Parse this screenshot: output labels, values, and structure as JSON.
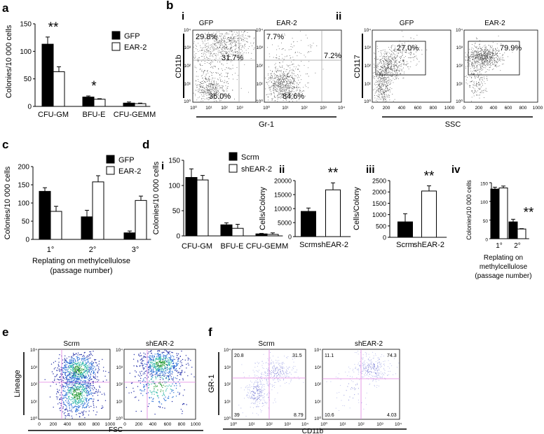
{
  "panels": [
    {
      "id": "a",
      "label": "a"
    },
    {
      "id": "b",
      "label": "b"
    },
    {
      "id": "c",
      "label": "c"
    },
    {
      "id": "d",
      "label": "d"
    },
    {
      "id": "e",
      "label": "e"
    },
    {
      "id": "f",
      "label": "f"
    }
  ],
  "b": {
    "sub_i": "i",
    "sub_ii": "ii",
    "left_titles": [
      "GFP",
      "EAR-2"
    ],
    "right_titles": [
      "GFP",
      "EAR-2"
    ],
    "ylabel_left": "CD11b",
    "xlabel_left": "Gr-1",
    "ylabel_right": "CD117",
    "xlabel_right": "SSC",
    "gfp_quads": {
      "ul": "29.8%",
      "ur": "31.7%",
      "ll": "36.0%"
    },
    "ear2_quads": {
      "ul": "7.7%",
      "ur": "7.2%",
      "ll": "84.6%"
    },
    "gfp_gate": "27.0%",
    "ear2_gate": "79.9%",
    "log_ticks": [
      "10⁰",
      "10¹",
      "10²",
      "10³",
      "10⁴"
    ],
    "ssc_ticks": [
      "0",
      "200",
      "400",
      "600",
      "800",
      "1000"
    ]
  },
  "d": {
    "sub_i": "i",
    "sub_ii": "ii",
    "sub_iii": "iii",
    "sub_iv": "iv"
  },
  "e": {
    "titles": [
      "Scrm",
      "shEAR-2"
    ],
    "ylabel": "Lineage",
    "xlabel": "FSC",
    "log_ticks": [
      "10⁰",
      "10¹",
      "10²",
      "10³",
      "10⁴"
    ],
    "lin_ticks": [
      "0",
      "200",
      "400",
      "600",
      "800",
      "1000"
    ]
  },
  "f": {
    "titles": [
      "Scrm",
      "shEAR-2"
    ],
    "ylabel": "GR-1",
    "xlabel": "CD11b",
    "log_ticks": [
      "10⁰",
      "10¹",
      "10²",
      "10³",
      "10⁴"
    ],
    "scrm_quads": {
      "ul": "20.8",
      "ur": "31.5",
      "ll": "39",
      "lr": "8.79"
    },
    "sh_quads": {
      "ul": "11.1",
      "ur": "74.3",
      "ll": "10.6",
      "lr": "4.03"
    }
  },
  "chart_data": [
    {
      "id": "a",
      "type": "bar",
      "title": "",
      "ylabel": "Colonies/10 000 cells",
      "ylim": [
        0,
        150
      ],
      "yticks": [
        0,
        50,
        100,
        150
      ],
      "categories": [
        "CFU-GM",
        "BFU-E",
        "CFU-GEMM"
      ],
      "series": [
        {
          "name": "GFP",
          "color": "#000000",
          "values": [
            113,
            17,
            6
          ],
          "errors": [
            13,
            2,
            2
          ]
        },
        {
          "name": "EAR-2",
          "color": "#ffffff",
          "values": [
            63,
            13,
            5
          ],
          "errors": [
            9,
            1,
            1
          ]
        }
      ],
      "annotations": [
        {
          "category": "CFU-GM",
          "text": "**"
        },
        {
          "category": "BFU-E",
          "text": "*"
        }
      ]
    },
    {
      "id": "c",
      "type": "bar",
      "title": "",
      "ylabel": "Colonies/10 000 cells",
      "xlabel": "Replating on methylcellulose\n(passage number)",
      "ylim": [
        0,
        200
      ],
      "yticks": [
        0,
        50,
        100,
        150,
        200
      ],
      "categories": [
        "1°",
        "2°",
        "3°"
      ],
      "series": [
        {
          "name": "GFP",
          "color": "#000000",
          "values": [
            132,
            62,
            18
          ],
          "errors": [
            10,
            18,
            5
          ]
        },
        {
          "name": "EAR-2",
          "color": "#ffffff",
          "values": [
            77,
            158,
            107
          ],
          "errors": [
            14,
            17,
            12
          ]
        }
      ]
    },
    {
      "id": "d-i",
      "type": "bar",
      "title": "",
      "ylabel": "Colonies/10 000 cells",
      "ylim": [
        0,
        150
      ],
      "yticks": [
        0,
        50,
        100,
        150
      ],
      "categories": [
        "CFU-GM",
        "BFU-E",
        "CFU-GEMM"
      ],
      "series": [
        {
          "name": "Scrm",
          "color": "#000000",
          "values": [
            116,
            22,
            4
          ],
          "errors": [
            17,
            4,
            1
          ]
        },
        {
          "name": "shEAR-2",
          "color": "#ffffff",
          "values": [
            111,
            15,
            3
          ],
          "errors": [
            9,
            8,
            3
          ]
        }
      ]
    },
    {
      "id": "d-ii",
      "type": "bar",
      "title": "",
      "ylabel": "Cells/Colony",
      "ylim": [
        0,
        20000
      ],
      "yticks": [
        0,
        5000,
        10000,
        15000,
        20000
      ],
      "categories": [
        "Scrm",
        "shEAR-2"
      ],
      "series": [
        {
          "name": "value",
          "values": [
            9000,
            16700
          ],
          "errors": [
            1200,
            2500
          ],
          "colors": [
            "#000000",
            "#ffffff"
          ]
        }
      ],
      "annotations": [
        {
          "category": "shEAR-2",
          "text": "**"
        }
      ]
    },
    {
      "id": "d-iii",
      "type": "bar",
      "title": "",
      "ylabel": "Cells/Colony",
      "ylim": [
        0,
        2500
      ],
      "yticks": [
        0,
        500,
        1000,
        1500,
        2000,
        2500
      ],
      "categories": [
        "Scrm",
        "shEAR-2"
      ],
      "series": [
        {
          "name": "value",
          "values": [
            680,
            2040
          ],
          "errors": [
            360,
            230
          ],
          "colors": [
            "#000000",
            "#ffffff"
          ]
        }
      ],
      "annotations": [
        {
          "category": "shEAR-2",
          "text": "**"
        }
      ]
    },
    {
      "id": "d-iv",
      "type": "bar",
      "title": "",
      "ylabel": "Colonies/10 000 cells",
      "xlabel": "Replating on\nmethylcellulose\n(passage number)",
      "ylim": [
        0,
        150
      ],
      "yticks": [
        0,
        50,
        100,
        150
      ],
      "categories": [
        "1°",
        "2°"
      ],
      "series": [
        {
          "name": "Scrm",
          "color": "#000000",
          "values": [
            133,
            45
          ],
          "errors": [
            5,
            7
          ]
        },
        {
          "name": "shEAR-2",
          "color": "#ffffff",
          "values": [
            136,
            26
          ],
          "errors": [
            5,
            1
          ]
        }
      ],
      "annotations": [
        {
          "category": "2°",
          "text": "**"
        }
      ]
    }
  ]
}
